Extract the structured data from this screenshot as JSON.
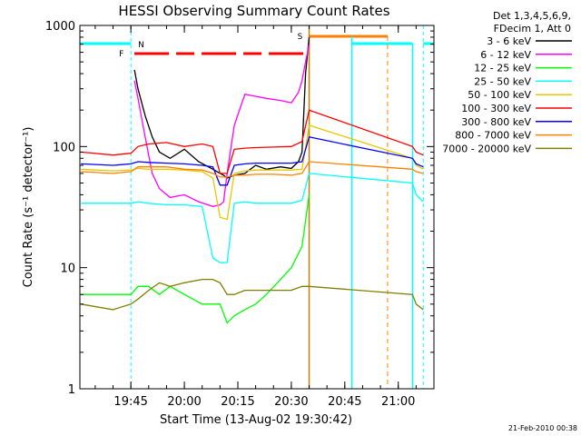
{
  "chart_data": {
    "type": "line",
    "title": "HESSI Observing Summary Count Rates",
    "xlabel": "Start Time (13-Aug-02 19:30:42)",
    "ylabel": "Count Rate (s⁻¹ detector⁻¹)",
    "yscale": "log",
    "ylim": [
      1,
      1000
    ],
    "xlim": [
      "19:30:42",
      "21:10:00"
    ],
    "x_ticks": [
      "19:45",
      "20:00",
      "20:15",
      "20:30",
      "20:45",
      "21:00"
    ],
    "y_ticks": [
      "1",
      "10",
      "100",
      "1000"
    ],
    "grid": false,
    "legend_header": [
      "Det 1,3,4,5,6,9,",
      "FDecim 1, Att 0"
    ],
    "legend_position": "right",
    "footer": "21-Feb-2010 00:38",
    "flag_labels": {
      "night": "N",
      "flare": "F",
      "saa": "S"
    },
    "series": [
      {
        "name": "3 - 6 keV",
        "color": "#000000",
        "x": [
          "19:31",
          "19:40",
          "19:45",
          "19:46",
          "19:47",
          "19:49",
          "19:51",
          "19:53",
          "19:56",
          "20:00",
          "20:04",
          "20:08",
          "20:10",
          "20:11",
          "20:12",
          "20:14",
          "20:17",
          "20:20",
          "20:23",
          "20:27",
          "20:30",
          "20:32",
          "20:33",
          "20:34",
          "20:35"
        ],
        "y": [
          null,
          null,
          null,
          430,
          300,
          180,
          120,
          90,
          80,
          95,
          75,
          65,
          60,
          58,
          55,
          58,
          60,
          70,
          65,
          68,
          66,
          75,
          90,
          400,
          800
        ]
      },
      {
        "name": "6 - 12 keV",
        "color": "#ff00ff",
        "x": [
          "19:46",
          "19:47",
          "19:49",
          "19:51",
          "19:53",
          "19:56",
          "20:00",
          "20:04",
          "20:08",
          "20:10",
          "20:11",
          "20:12",
          "20:14",
          "20:17",
          "20:20",
          "20:23",
          "20:27",
          "20:30",
          "20:32",
          "20:33",
          "20:34",
          "20:35"
        ],
        "y": [
          350,
          250,
          120,
          60,
          45,
          38,
          40,
          35,
          32,
          33,
          35,
          60,
          150,
          270,
          260,
          250,
          240,
          230,
          280,
          350,
          500,
          700
        ]
      },
      {
        "name": "12 - 25 keV",
        "color": "#00ff00",
        "x": [
          "19:31",
          "19:40",
          "19:45",
          "19:47",
          "19:50",
          "19:53",
          "19:56",
          "20:00",
          "20:05",
          "20:08",
          "20:10",
          "20:12",
          "20:14",
          "20:17",
          "20:20",
          "20:23",
          "20:27",
          "20:30",
          "20:33",
          "20:35"
        ],
        "y": [
          6,
          6,
          6,
          7,
          7,
          6,
          7,
          6,
          5,
          5,
          5,
          3.5,
          4,
          4.5,
          5,
          6,
          8,
          10,
          15,
          40
        ]
      },
      {
        "name": "25 - 50 keV",
        "color": "#00ffff",
        "x": [
          "19:31",
          "19:40",
          "19:45",
          "19:47",
          "19:50",
          "19:55",
          "20:00",
          "20:05",
          "20:08",
          "20:10",
          "20:12",
          "20:14",
          "20:17",
          "20:20",
          "20:25",
          "20:30",
          "20:33",
          "20:35",
          "21:04",
          "21:05",
          "21:07"
        ],
        "y": [
          34,
          34,
          34,
          35,
          34,
          33,
          33,
          32,
          12,
          11,
          11,
          34,
          35,
          34,
          34,
          34,
          36,
          60,
          50,
          40,
          35
        ]
      },
      {
        "name": "50 - 100 keV",
        "color": "#e6c800",
        "x": [
          "19:31",
          "19:40",
          "19:45",
          "19:47",
          "19:50",
          "19:55",
          "20:00",
          "20:05",
          "20:08",
          "20:10",
          "20:12",
          "20:14",
          "20:17",
          "20:20",
          "20:25",
          "20:30",
          "20:33",
          "20:35",
          "21:04",
          "21:05",
          "21:07"
        ],
        "y": [
          65,
          63,
          64,
          66,
          65,
          65,
          64,
          62,
          55,
          26,
          25,
          60,
          63,
          64,
          64,
          64,
          65,
          150,
          80,
          70,
          65
        ]
      },
      {
        "name": "100 - 300 keV",
        "color": "#ff0000",
        "x": [
          "19:31",
          "19:40",
          "19:45",
          "19:47",
          "19:50",
          "19:55",
          "20:00",
          "20:05",
          "20:08",
          "20:10",
          "20:12",
          "20:14",
          "20:17",
          "20:20",
          "20:25",
          "20:30",
          "20:33",
          "20:35",
          "21:04",
          "21:05",
          "21:07"
        ],
        "y": [
          90,
          85,
          88,
          100,
          105,
          108,
          100,
          105,
          100,
          60,
          60,
          95,
          97,
          98,
          99,
          100,
          110,
          200,
          100,
          90,
          85
        ]
      },
      {
        "name": "300 - 800 keV",
        "color": "#0000ff",
        "x": [
          "19:31",
          "19:40",
          "19:45",
          "19:47",
          "19:50",
          "19:55",
          "20:00",
          "20:05",
          "20:08",
          "20:10",
          "20:12",
          "20:14",
          "20:17",
          "20:20",
          "20:25",
          "20:30",
          "20:33",
          "20:35",
          "21:04",
          "21:05",
          "21:07"
        ],
        "y": [
          72,
          70,
          72,
          75,
          74,
          73,
          72,
          70,
          68,
          48,
          48,
          70,
          72,
          73,
          73,
          73,
          75,
          120,
          80,
          72,
          68
        ]
      },
      {
        "name": "800 - 7000 keV",
        "color": "#ff8000",
        "x": [
          "19:31",
          "19:40",
          "19:45",
          "19:47",
          "19:50",
          "19:55",
          "20:00",
          "20:05",
          "20:08",
          "20:10",
          "20:12",
          "20:14",
          "20:17",
          "20:20",
          "20:25",
          "20:30",
          "20:33",
          "20:35",
          "21:04",
          "21:05",
          "21:07"
        ],
        "y": [
          62,
          60,
          62,
          68,
          68,
          68,
          65,
          64,
          60,
          56,
          56,
          58,
          58,
          59,
          59,
          58,
          60,
          75,
          65,
          62,
          60
        ]
      },
      {
        "name": "7000 - 20000 keV",
        "color": "#808000",
        "x": [
          "19:31",
          "19:40",
          "19:45",
          "19:47",
          "19:50",
          "19:53",
          "19:56",
          "20:00",
          "20:05",
          "20:08",
          "20:10",
          "20:12",
          "20:14",
          "20:17",
          "20:20",
          "20:25",
          "20:30",
          "20:33",
          "20:35",
          "21:04",
          "21:05",
          "21:07"
        ],
        "y": [
          5,
          4.5,
          5,
          5.5,
          6.5,
          7.5,
          7,
          7.5,
          8,
          8,
          7.5,
          6,
          6,
          6.5,
          6.5,
          6.5,
          6.5,
          7,
          7,
          6,
          5,
          4.5
        ]
      }
    ]
  }
}
